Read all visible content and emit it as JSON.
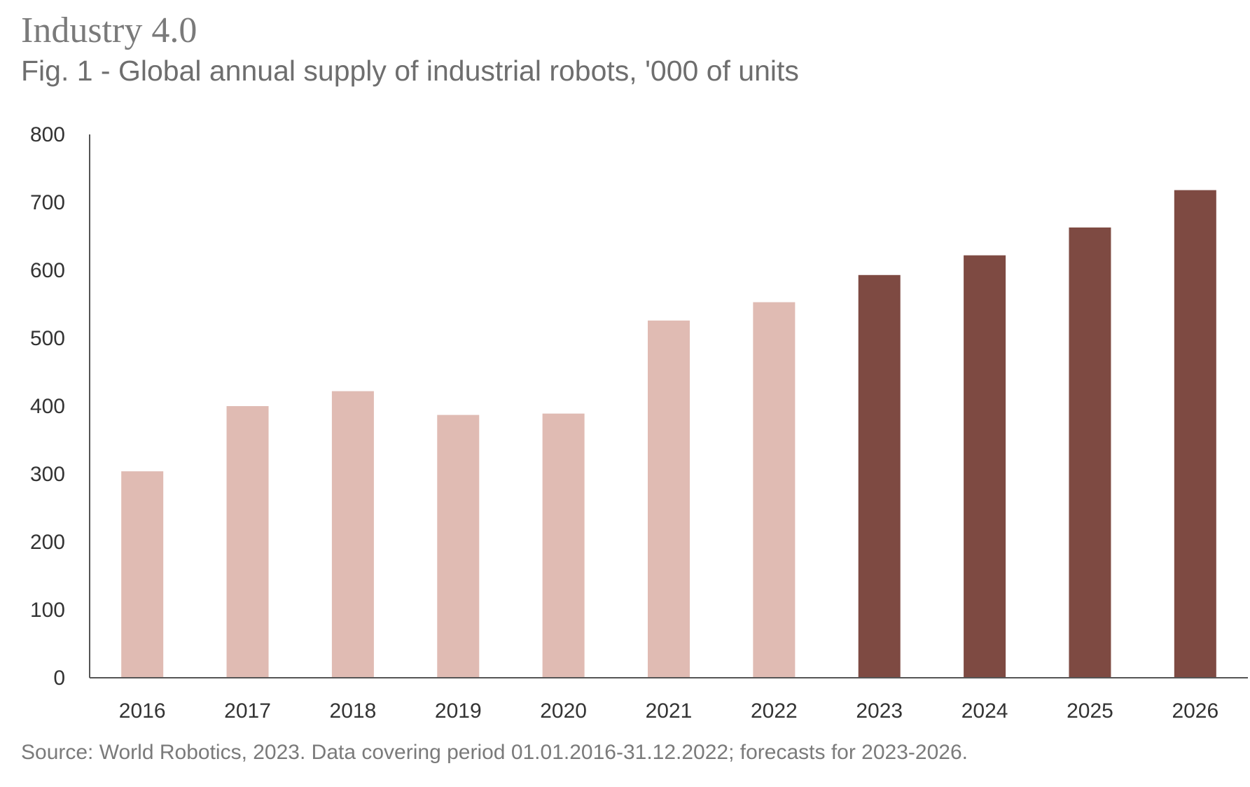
{
  "header": {
    "title": "Industry 4.0",
    "subtitle": "Fig. 1 - Global annual supply of industrial robots, '000 of units"
  },
  "footer": {
    "source": "Source: World Robotics, 2023. Data covering period 01.01.2016-31.12.2022; forecasts for 2023-2026."
  },
  "colors": {
    "historical": "#e0bbb3",
    "forecast": "#7e4a42",
    "axis": "#555555",
    "text": "#333333"
  },
  "chart_data": {
    "type": "bar",
    "title": "Fig. 1 - Global annual supply of industrial robots, '000 of units",
    "xlabel": "",
    "ylabel": "",
    "ylim": [
      0,
      800
    ],
    "yticks": [
      0,
      100,
      200,
      300,
      400,
      500,
      600,
      700,
      800
    ],
    "grid": false,
    "categories": [
      "2016",
      "2017",
      "2018",
      "2019",
      "2020",
      "2021",
      "2022",
      "2023",
      "2024",
      "2025",
      "2026"
    ],
    "values": [
      304,
      400,
      422,
      387,
      389,
      526,
      553,
      593,
      622,
      663,
      718
    ],
    "bar_kind": [
      "actual",
      "actual",
      "actual",
      "actual",
      "actual",
      "actual",
      "actual",
      "forecast",
      "forecast",
      "forecast",
      "forecast"
    ]
  }
}
